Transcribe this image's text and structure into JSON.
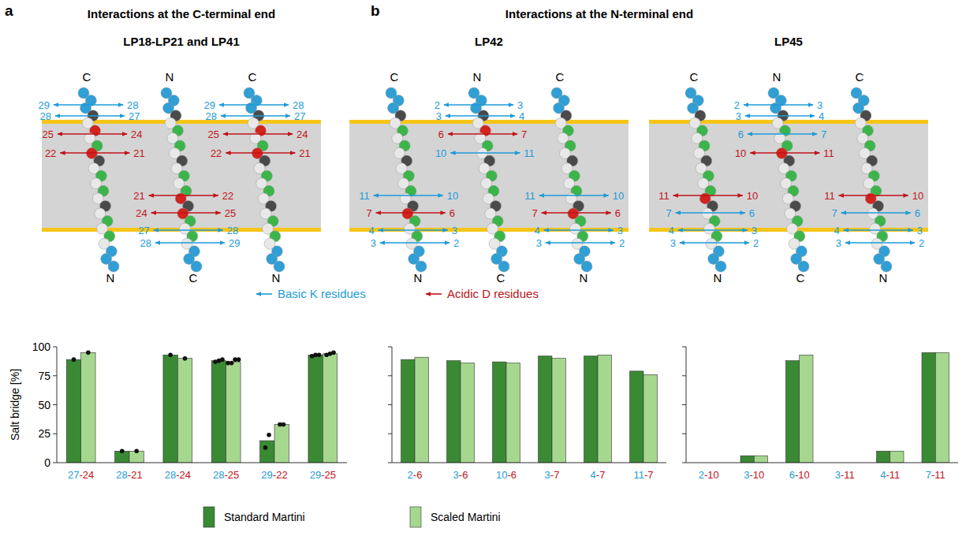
{
  "panel_labels": [
    "a",
    "b"
  ],
  "headings": [
    "Interactions at the C-terminal end",
    "Interactions at the N-terminal end"
  ],
  "diagrams": [
    {
      "title": "LP18-LP21 and LP41",
      "helices": [
        {
          "top": "C",
          "bottom": "N",
          "top_pairs": [
            {
              "left": 29,
              "right": 28,
              "color": "#1e9bd7"
            },
            {
              "left": 28,
              "right": 27,
              "color": "#1e9bd7"
            },
            {
              "left": 25,
              "right": 24,
              "color": "#c0141b"
            },
            {
              "left": 22,
              "right": 21,
              "color": "#c0141b"
            }
          ],
          "bottom_pairs": []
        },
        {
          "top": "N",
          "bottom": "C",
          "top_pairs": [],
          "bottom_pairs": [
            {
              "left": 21,
              "right": 22,
              "color": "#c0141b"
            },
            {
              "left": 24,
              "right": 25,
              "color": "#c0141b"
            },
            {
              "left": 27,
              "right": 28,
              "color": "#1e9bd7"
            },
            {
              "left": 28,
              "right": 29,
              "color": "#1e9bd7"
            }
          ]
        },
        {
          "top": "C",
          "bottom": "N",
          "top_pairs": [
            {
              "left": 29,
              "right": 28,
              "color": "#1e9bd7"
            },
            {
              "left": 28,
              "right": 27,
              "color": "#1e9bd7"
            },
            {
              "left": 25,
              "right": 24,
              "color": "#c0141b"
            },
            {
              "left": 22,
              "right": 21,
              "color": "#c0141b"
            }
          ],
          "bottom_pairs": []
        }
      ]
    },
    {
      "title": "LP42",
      "helices": [
        {
          "top": "C",
          "bottom": "N",
          "top_pairs": [],
          "bottom_pairs": [
            {
              "left": 11,
              "right": 10,
              "color": "#1e9bd7"
            },
            {
              "left": 7,
              "right": 6,
              "color": "#c0141b"
            },
            {
              "left": 4,
              "right": 3,
              "color": "#1e9bd7"
            },
            {
              "left": 3,
              "right": 2,
              "color": "#1e9bd7"
            }
          ]
        },
        {
          "top": "N",
          "bottom": "C",
          "top_pairs": [
            {
              "left": 2,
              "right": 3,
              "color": "#1e9bd7"
            },
            {
              "left": 3,
              "right": 4,
              "color": "#1e9bd7"
            },
            {
              "left": 6,
              "right": 7,
              "color": "#c0141b"
            },
            {
              "left": 10,
              "right": 11,
              "color": "#1e9bd7"
            }
          ],
          "bottom_pairs": []
        },
        {
          "top": "C",
          "bottom": "N",
          "top_pairs": [],
          "bottom_pairs": [
            {
              "left": 11,
              "right": 10,
              "color": "#1e9bd7"
            },
            {
              "left": 7,
              "right": 6,
              "color": "#c0141b"
            },
            {
              "left": 4,
              "right": 3,
              "color": "#1e9bd7"
            },
            {
              "left": 3,
              "right": 2,
              "color": "#1e9bd7"
            }
          ]
        }
      ]
    },
    {
      "title": "LP45",
      "helices": [
        {
          "top": "C",
          "bottom": "N",
          "top_pairs": [],
          "bottom_pairs": [
            {
              "left": 11,
              "right": 10,
              "color": "#c0141b"
            },
            {
              "left": 7,
              "right": 6,
              "color": "#1e9bd7"
            },
            {
              "left": 4,
              "right": 3,
              "color": "#1e9bd7"
            },
            {
              "left": 3,
              "right": 2,
              "color": "#1e9bd7"
            }
          ]
        },
        {
          "top": "N",
          "bottom": "C",
          "top_pairs": [
            {
              "left": 2,
              "right": 3,
              "color": "#1e9bd7"
            },
            {
              "left": 3,
              "right": 4,
              "color": "#1e9bd7"
            },
            {
              "left": 6,
              "right": 7,
              "color": "#1e9bd7"
            },
            {
              "left": 10,
              "right": 11,
              "color": "#c0141b"
            }
          ],
          "bottom_pairs": []
        },
        {
          "top": "C",
          "bottom": "N",
          "top_pairs": [],
          "bottom_pairs": [
            {
              "left": 11,
              "right": 10,
              "color": "#c0141b"
            },
            {
              "left": 7,
              "right": 6,
              "color": "#1e9bd7"
            },
            {
              "left": 4,
              "right": 3,
              "color": "#1e9bd7"
            },
            {
              "left": 3,
              "right": 2,
              "color": "#1e9bd7"
            }
          ]
        }
      ]
    }
  ],
  "residue_legend": [
    {
      "text": "Basic K residues",
      "color": "#1e9bd7"
    },
    {
      "text": "Acidic D residues",
      "color": "#c0141b"
    }
  ],
  "chart_data": [
    {
      "type": "bar",
      "y_label": "Salt bridge [%]",
      "categories": [
        "27-24",
        "28-21",
        "28-24",
        "28-25",
        "29-22",
        "29-25"
      ],
      "series": [
        {
          "name": "Standard Martini",
          "color": "#3a8a34",
          "values": [
            89,
            10,
            93,
            88,
            19,
            93
          ],
          "points": [
            [
              89
            ],
            [
              10
            ],
            [
              93
            ],
            [
              87,
              88,
              89
            ],
            [
              13,
              24
            ],
            [
              92,
              93,
              93
            ]
          ]
        },
        {
          "name": "Scaled Martini",
          "color": "#a6d78f",
          "values": [
            95,
            10,
            90,
            87,
            33,
            94
          ],
          "points": [
            [
              95
            ],
            [
              10
            ],
            [
              90
            ],
            [
              86,
              86,
              89,
              89
            ],
            [
              33,
              33
            ],
            [
              93,
              94,
              95
            ]
          ]
        }
      ],
      "ylim": [
        0,
        100
      ],
      "yticks": [
        0,
        25,
        50,
        75,
        100
      ],
      "grid": false,
      "legend": "bottom"
    },
    {
      "type": "bar",
      "categories": [
        "2-6",
        "3-6",
        "10-6",
        "3-7",
        "4-7",
        "11-7"
      ],
      "series": [
        {
          "color": "#3a8a34",
          "values": [
            89,
            88,
            87,
            92,
            92,
            79
          ]
        },
        {
          "color": "#a6d78f",
          "values": [
            91,
            86,
            86,
            90,
            93,
            76
          ]
        }
      ],
      "ylim": [
        0,
        100
      ],
      "yticks": [
        0,
        25,
        50,
        75,
        100
      ],
      "grid": false,
      "tick_labels": "x"
    },
    {
      "type": "bar",
      "categories": [
        "2-10",
        "3-10",
        "6-10",
        "3-11",
        "4-11",
        "7-11"
      ],
      "series": [
        {
          "color": "#3a8a34",
          "values": [
            0,
            6,
            88,
            0,
            10,
            95
          ]
        },
        {
          "color": "#a6d78f",
          "values": [
            0,
            6,
            93,
            0,
            10,
            95
          ]
        }
      ],
      "ylim": [
        0,
        100
      ],
      "yticks": [
        0,
        25,
        50,
        75,
        100
      ],
      "grid": false,
      "tick_labels": "x"
    }
  ]
}
